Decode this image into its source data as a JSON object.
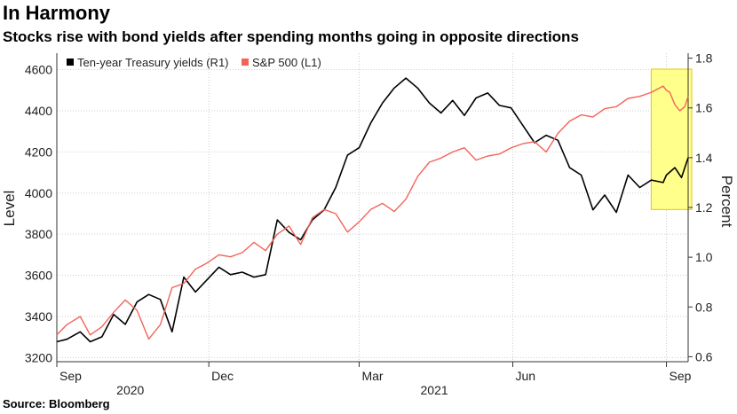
{
  "header": {
    "title": "In Harmony",
    "subtitle": "Stocks rise with bond yields after spending months going in opposite directions"
  },
  "footer": {
    "source": "Source: Bloomberg"
  },
  "colors": {
    "sp500": "#f2645a",
    "yield": "#000000",
    "highlight": "#ffff8c",
    "highlight_border": "#e6c700",
    "grid": "#cccccc"
  },
  "chart_data": {
    "type": "line",
    "ylabel_left": "Level",
    "ylabel_right": "Percent",
    "ylim_left": [
      3180,
      4680
    ],
    "ylim_right": [
      0.58,
      1.82
    ],
    "yticks_left": [
      3200,
      3400,
      3600,
      3800,
      4000,
      4200,
      4400,
      4600
    ],
    "yticks_right": [
      0.6,
      0.8,
      1.0,
      1.2,
      1.4,
      1.6,
      1.8
    ],
    "yticks_right_labels": [
      "0.6",
      "0.8",
      "1.0",
      "1.2",
      "1.4",
      "1.6",
      "1.8"
    ],
    "xlim": [
      "2020-09-01",
      "2021-09-14"
    ],
    "xticks": [
      {
        "date": "2020-09-01",
        "label": "Sep"
      },
      {
        "date": "2020-12-01",
        "label": "Dec"
      },
      {
        "date": "2021-03-01",
        "label": "Mar"
      },
      {
        "date": "2021-06-01",
        "label": "Jun"
      },
      {
        "date": "2021-09-01",
        "label": "Sep"
      }
    ],
    "year_labels": [
      {
        "date": "2020-10-15",
        "label": "2020"
      },
      {
        "date": "2021-04-15",
        "label": "2021"
      }
    ],
    "legend": {
      "position": "top-left"
    },
    "grid": true,
    "highlight": {
      "x_start": "2021-08-25",
      "x_end": "2021-09-14",
      "y_low": 3920,
      "y_high": 4560
    },
    "series": [
      {
        "name": "Ten-year Treasury yields (R1)",
        "axis": "right",
        "color": "#000000",
        "points": [
          [
            "2020-09-01",
            0.66
          ],
          [
            "2020-09-07",
            0.67
          ],
          [
            "2020-09-15",
            0.7
          ],
          [
            "2020-09-21",
            0.66
          ],
          [
            "2020-09-28",
            0.68
          ],
          [
            "2020-10-05",
            0.77
          ],
          [
            "2020-10-12",
            0.73
          ],
          [
            "2020-10-19",
            0.82
          ],
          [
            "2020-10-26",
            0.85
          ],
          [
            "2020-11-02",
            0.83
          ],
          [
            "2020-11-09",
            0.7
          ],
          [
            "2020-11-16",
            0.92
          ],
          [
            "2020-11-23",
            0.86
          ],
          [
            "2020-11-30",
            0.91
          ],
          [
            "2020-12-07",
            0.96
          ],
          [
            "2020-12-14",
            0.93
          ],
          [
            "2020-12-21",
            0.94
          ],
          [
            "2020-12-28",
            0.92
          ],
          [
            "2021-01-04",
            0.93
          ],
          [
            "2021-01-11",
            1.15
          ],
          [
            "2021-01-18",
            1.1
          ],
          [
            "2021-01-25",
            1.07
          ],
          [
            "2021-02-01",
            1.15
          ],
          [
            "2021-02-08",
            1.19
          ],
          [
            "2021-02-15",
            1.28
          ],
          [
            "2021-02-22",
            1.41
          ],
          [
            "2021-03-01",
            1.44
          ],
          [
            "2021-03-08",
            1.54
          ],
          [
            "2021-03-15",
            1.62
          ],
          [
            "2021-03-22",
            1.68
          ],
          [
            "2021-03-29",
            1.72
          ],
          [
            "2021-04-05",
            1.68
          ],
          [
            "2021-04-12",
            1.62
          ],
          [
            "2021-04-19",
            1.58
          ],
          [
            "2021-04-26",
            1.63
          ],
          [
            "2021-05-03",
            1.57
          ],
          [
            "2021-05-10",
            1.64
          ],
          [
            "2021-05-17",
            1.66
          ],
          [
            "2021-05-24",
            1.61
          ],
          [
            "2021-05-31",
            1.6
          ],
          [
            "2021-06-07",
            1.53
          ],
          [
            "2021-06-14",
            1.46
          ],
          [
            "2021-06-21",
            1.49
          ],
          [
            "2021-06-28",
            1.47
          ],
          [
            "2021-07-05",
            1.36
          ],
          [
            "2021-07-12",
            1.33
          ],
          [
            "2021-07-19",
            1.19
          ],
          [
            "2021-07-26",
            1.25
          ],
          [
            "2021-08-02",
            1.18
          ],
          [
            "2021-08-09",
            1.33
          ],
          [
            "2021-08-16",
            1.28
          ],
          [
            "2021-08-23",
            1.31
          ],
          [
            "2021-08-30",
            1.3
          ],
          [
            "2021-09-01",
            1.33
          ],
          [
            "2021-09-06",
            1.36
          ],
          [
            "2021-09-10",
            1.32
          ],
          [
            "2021-09-14",
            1.4
          ]
        ]
      },
      {
        "name": "S&P 500 (L1)",
        "axis": "left",
        "color": "#f2645a",
        "points": [
          [
            "2020-09-01",
            3310
          ],
          [
            "2020-09-07",
            3360
          ],
          [
            "2020-09-15",
            3400
          ],
          [
            "2020-09-21",
            3310
          ],
          [
            "2020-09-28",
            3350
          ],
          [
            "2020-10-05",
            3420
          ],
          [
            "2020-10-12",
            3480
          ],
          [
            "2020-10-19",
            3430
          ],
          [
            "2020-10-26",
            3290
          ],
          [
            "2020-11-02",
            3360
          ],
          [
            "2020-11-09",
            3540
          ],
          [
            "2020-11-16",
            3560
          ],
          [
            "2020-11-23",
            3630
          ],
          [
            "2020-11-30",
            3660
          ],
          [
            "2020-12-07",
            3700
          ],
          [
            "2020-12-14",
            3690
          ],
          [
            "2020-12-21",
            3710
          ],
          [
            "2020-12-28",
            3760
          ],
          [
            "2021-01-04",
            3720
          ],
          [
            "2021-01-11",
            3800
          ],
          [
            "2021-01-18",
            3840
          ],
          [
            "2021-01-25",
            3750
          ],
          [
            "2021-02-01",
            3880
          ],
          [
            "2021-02-08",
            3920
          ],
          [
            "2021-02-15",
            3900
          ],
          [
            "2021-02-22",
            3810
          ],
          [
            "2021-03-01",
            3860
          ],
          [
            "2021-03-08",
            3920
          ],
          [
            "2021-03-15",
            3950
          ],
          [
            "2021-03-22",
            3910
          ],
          [
            "2021-03-29",
            3970
          ],
          [
            "2021-04-05",
            4080
          ],
          [
            "2021-04-12",
            4150
          ],
          [
            "2021-04-19",
            4170
          ],
          [
            "2021-04-26",
            4200
          ],
          [
            "2021-05-03",
            4220
          ],
          [
            "2021-05-10",
            4160
          ],
          [
            "2021-05-17",
            4180
          ],
          [
            "2021-05-24",
            4190
          ],
          [
            "2021-05-31",
            4220
          ],
          [
            "2021-06-07",
            4240
          ],
          [
            "2021-06-14",
            4250
          ],
          [
            "2021-06-21",
            4200
          ],
          [
            "2021-06-28",
            4290
          ],
          [
            "2021-07-05",
            4350
          ],
          [
            "2021-07-12",
            4380
          ],
          [
            "2021-07-19",
            4370
          ],
          [
            "2021-07-26",
            4410
          ],
          [
            "2021-08-02",
            4420
          ],
          [
            "2021-08-09",
            4460
          ],
          [
            "2021-08-16",
            4470
          ],
          [
            "2021-08-23",
            4490
          ],
          [
            "2021-08-30",
            4520
          ],
          [
            "2021-09-01",
            4500
          ],
          [
            "2021-09-03",
            4490
          ],
          [
            "2021-09-06",
            4430
          ],
          [
            "2021-09-09",
            4400
          ],
          [
            "2021-09-12",
            4420
          ],
          [
            "2021-09-14",
            4470
          ]
        ]
      }
    ]
  }
}
